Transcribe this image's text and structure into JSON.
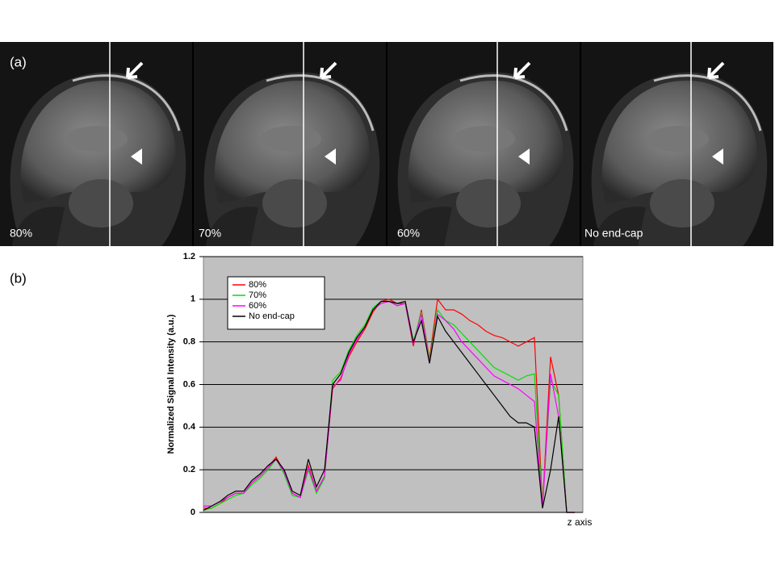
{
  "figure": {
    "panel_a": "(a)",
    "panel_b": "(b)",
    "images": [
      {
        "label": "80%"
      },
      {
        "label": "70%"
      },
      {
        "label": "60%"
      },
      {
        "label": "No end-cap"
      }
    ]
  },
  "chart_data": {
    "type": "line",
    "y_label": "Normalized Signal Intensity (a.u.)",
    "x_label": "z axis",
    "categories": [
      null,
      null,
      null,
      null,
      null,
      null,
      null,
      null,
      null,
      null,
      null,
      null,
      null,
      null,
      null,
      null,
      null,
      null,
      null,
      null,
      null,
      null,
      null,
      null,
      null,
      null,
      null,
      null,
      null,
      null,
      null,
      null,
      null,
      null,
      null,
      null,
      null,
      null,
      null,
      null,
      null,
      null,
      null,
      null,
      null,
      null,
      null
    ],
    "ylim": [
      0,
      1.2
    ],
    "yticks": [
      0,
      0.2,
      0.4,
      0.6,
      0.8,
      1,
      1.2
    ],
    "grid": true,
    "legend": "upper left",
    "series": [
      {
        "name": "80%",
        "color": "#ff0000",
        "values": [
          0.02,
          0.02,
          0.04,
          0.07,
          0.09,
          0.09,
          0.14,
          0.17,
          0.21,
          0.26,
          0.19,
          0.09,
          0.07,
          0.22,
          0.1,
          0.17,
          0.58,
          0.63,
          0.73,
          0.8,
          0.86,
          0.94,
          0.99,
          1.0,
          0.98,
          0.98,
          0.78,
          0.95,
          0.72,
          1.0,
          0.95,
          0.95,
          0.93,
          0.9,
          0.88,
          0.85,
          0.83,
          0.82,
          0.8,
          0.78,
          0.8,
          0.82,
          0.03,
          0.73,
          0.55,
          0,
          0
        ]
      },
      {
        "name": "70%",
        "color": "#00e000",
        "values": [
          0.01,
          0.02,
          0.04,
          0.06,
          0.08,
          0.09,
          0.13,
          0.16,
          0.2,
          0.25,
          0.18,
          0.08,
          0.07,
          0.2,
          0.09,
          0.16,
          0.62,
          0.66,
          0.76,
          0.83,
          0.88,
          0.96,
          0.99,
          0.99,
          0.97,
          0.98,
          0.8,
          0.94,
          0.71,
          0.95,
          0.9,
          0.88,
          0.84,
          0.8,
          0.76,
          0.72,
          0.68,
          0.66,
          0.64,
          0.62,
          0.64,
          0.65,
          0.03,
          0.62,
          0.55,
          0,
          0
        ]
      },
      {
        "name": "60%",
        "color": "#ff00ff",
        "values": [
          0.03,
          0.03,
          0.05,
          0.07,
          0.09,
          0.09,
          0.14,
          0.17,
          0.21,
          0.25,
          0.19,
          0.09,
          0.07,
          0.21,
          0.1,
          0.17,
          0.59,
          0.62,
          0.74,
          0.81,
          0.87,
          0.95,
          0.98,
          0.99,
          0.97,
          0.98,
          0.79,
          0.93,
          0.7,
          0.93,
          0.9,
          0.86,
          0.8,
          0.76,
          0.72,
          0.68,
          0.64,
          0.62,
          0.6,
          0.58,
          0.55,
          0.52,
          0.02,
          0.65,
          0.45,
          0,
          0
        ]
      },
      {
        "name": "No end-cap",
        "color": "#000000",
        "values": [
          0.01,
          0.03,
          0.05,
          0.08,
          0.1,
          0.1,
          0.15,
          0.18,
          0.22,
          0.25,
          0.2,
          0.1,
          0.08,
          0.25,
          0.12,
          0.2,
          0.6,
          0.65,
          0.75,
          0.82,
          0.87,
          0.95,
          0.99,
          0.99,
          0.98,
          0.99,
          0.8,
          0.9,
          0.7,
          0.92,
          0.85,
          0.8,
          0.75,
          0.7,
          0.65,
          0.6,
          0.55,
          0.5,
          0.45,
          0.42,
          0.42,
          0.4,
          0.02,
          0.2,
          0.45,
          0,
          0
        ]
      }
    ]
  }
}
